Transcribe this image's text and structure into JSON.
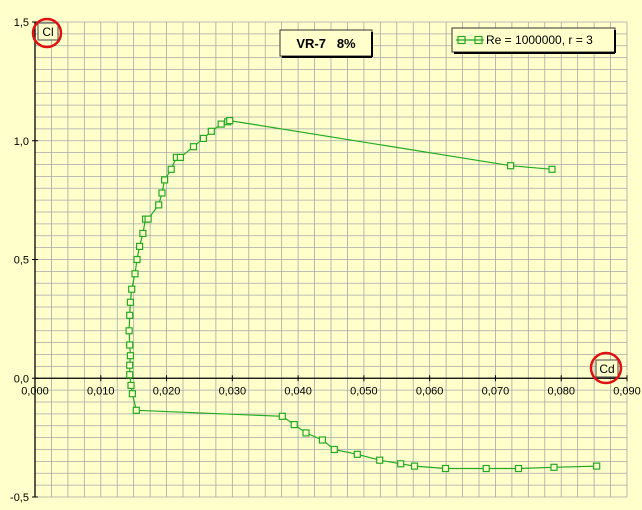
{
  "chart_data": {
    "type": "line",
    "title": "VR-7   8%",
    "xlabel": "Cd",
    "ylabel": "Cl",
    "xlim": [
      0.0,
      0.09
    ],
    "ylim": [
      -0.5,
      1.5
    ],
    "grid": true,
    "legend_position": "top-right",
    "x_ticks": [
      "0,000",
      "0,010",
      "0,020",
      "0,030",
      "0,040",
      "0,050",
      "0,060",
      "0,070",
      "0,080",
      "0,090"
    ],
    "y_ticks": [
      "-0,5",
      "0,0",
      "0,5",
      "1,0",
      "1,5"
    ],
    "series": [
      {
        "name": "Re = 1000000, r = 3",
        "color": "#22aa22",
        "x": [
          0.0854,
          0.0789,
          0.0735,
          0.0686,
          0.0624,
          0.0577,
          0.0556,
          0.0524,
          0.049,
          0.0455,
          0.0437,
          0.0412,
          0.0394,
          0.0376,
          0.0154,
          0.0148,
          0.0146,
          0.0144,
          0.0144,
          0.0145,
          0.0144,
          0.0143,
          0.0144,
          0.0145,
          0.0147,
          0.0152,
          0.0155,
          0.0159,
          0.0164,
          0.0168,
          0.0172,
          0.0188,
          0.0193,
          0.0197,
          0.0207,
          0.0215,
          0.0221,
          0.0241,
          0.0256,
          0.0268,
          0.0283,
          0.0293,
          0.0296,
          0.0723,
          0.0786
        ],
        "y": [
          -0.37,
          -0.375,
          -0.38,
          -0.38,
          -0.38,
          -0.37,
          -0.36,
          -0.345,
          -0.32,
          -0.3,
          -0.26,
          -0.23,
          -0.195,
          -0.16,
          -0.135,
          -0.065,
          -0.03,
          0.015,
          0.055,
          0.095,
          0.14,
          0.2,
          0.265,
          0.32,
          0.375,
          0.44,
          0.5,
          0.555,
          0.61,
          0.67,
          0.67,
          0.73,
          0.78,
          0.835,
          0.88,
          0.93,
          0.93,
          0.975,
          1.01,
          1.04,
          1.07,
          1.08,
          1.085,
          0.895,
          0.88
        ]
      }
    ]
  }
}
